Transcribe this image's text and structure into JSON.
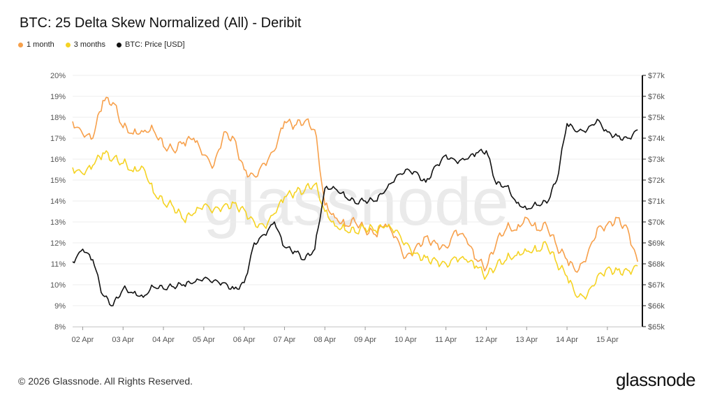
{
  "header": {
    "title": "BTC: 25 Delta Skew Normalized (All) - Deribit"
  },
  "legend": [
    {
      "label": "1 month",
      "color": "#F7A04B"
    },
    {
      "label": "3 months",
      "color": "#F5D324"
    },
    {
      "label": "BTC: Price [USD]",
      "color": "#111111"
    }
  ],
  "watermark": "glassnode",
  "footer": {
    "copyright": "© 2026 Glassnode. All Rights Reserved.",
    "brand": "glassnode"
  },
  "chart_data": {
    "type": "line",
    "title": "BTC: 25 Delta Skew Normalized (All) - Deribit",
    "x": [
      1.75,
      2.0,
      2.25,
      2.5,
      2.75,
      3.0,
      3.25,
      3.5,
      3.75,
      4.0,
      4.25,
      4.5,
      4.75,
      5.0,
      5.25,
      5.5,
      5.75,
      6.0,
      6.25,
      6.5,
      6.75,
      7.0,
      7.25,
      7.5,
      7.75,
      8.0,
      8.25,
      8.5,
      8.75,
      9.0,
      9.25,
      9.5,
      9.75,
      10.0,
      10.25,
      10.5,
      10.75,
      11.0,
      11.25,
      11.5,
      11.75,
      12.0,
      12.25,
      12.5,
      12.75,
      13.0,
      13.25,
      13.5,
      13.75,
      14.0,
      14.25,
      14.5,
      14.75,
      15.0,
      15.25,
      15.5,
      15.75
    ],
    "x_ticks": [
      2,
      3,
      4,
      5,
      6,
      7,
      8,
      9,
      10,
      11,
      12,
      13,
      14,
      15
    ],
    "x_tick_labels": [
      "02 Apr",
      "03 Apr",
      "04 Apr",
      "05 Apr",
      "06 Apr",
      "07 Apr",
      "08 Apr",
      "09 Apr",
      "10 Apr",
      "11 Apr",
      "12 Apr",
      "13 Apr",
      "14 Apr",
      "15 Apr"
    ],
    "xlim": [
      1.75,
      15.85
    ],
    "y_left": {
      "ticks": [
        8,
        9,
        10,
        11,
        12,
        13,
        14,
        15,
        16,
        17,
        18,
        19,
        20
      ],
      "tick_labels": [
        "8%",
        "9%",
        "10%",
        "11%",
        "12%",
        "13%",
        "14%",
        "15%",
        "16%",
        "17%",
        "18%",
        "19%",
        "20%"
      ],
      "ylim": [
        8,
        20
      ]
    },
    "y_right": {
      "ticks": [
        65000,
        66000,
        67000,
        68000,
        69000,
        70000,
        71000,
        72000,
        73000,
        74000,
        75000,
        76000,
        77000
      ],
      "tick_labels": [
        "$65k",
        "$66k",
        "$67k",
        "$68k",
        "$69k",
        "$70k",
        "$71k",
        "$72k",
        "$73k",
        "$74k",
        "$75k",
        "$76k",
        "$77k"
      ],
      "ylim": [
        65000,
        77000
      ]
    },
    "grid": "horizontal",
    "legend_position": "top-left",
    "series": [
      {
        "name": "1 month",
        "color": "#F7A04B",
        "axis": "left",
        "values": [
          17.8,
          17.2,
          17.0,
          18.8,
          18.7,
          17.5,
          17.2,
          17.3,
          17.4,
          16.6,
          16.4,
          16.8,
          17.0,
          16.2,
          15.7,
          17.3,
          17.0,
          15.5,
          15.2,
          15.8,
          16.4,
          17.8,
          17.6,
          17.8,
          17.4,
          13.8,
          13.2,
          12.8,
          13.0,
          12.6,
          12.4,
          12.9,
          12.3,
          11.3,
          11.8,
          12.3,
          12.0,
          11.8,
          12.6,
          12.2,
          11.2,
          10.8,
          12.0,
          12.7,
          12.6,
          13.2,
          12.6,
          12.8,
          11.8,
          11.2,
          10.6,
          11.4,
          12.7,
          12.9,
          13.2,
          12.7,
          11.1
        ]
      },
      {
        "name": "3 months",
        "color": "#F5D324",
        "axis": "left",
        "values": [
          15.6,
          15.3,
          15.7,
          16.3,
          16.0,
          15.8,
          15.4,
          15.6,
          14.4,
          13.9,
          13.7,
          13.1,
          13.4,
          13.8,
          13.6,
          13.8,
          13.9,
          13.6,
          13.0,
          12.8,
          13.4,
          14.2,
          14.4,
          14.5,
          14.8,
          13.5,
          12.8,
          12.6,
          12.5,
          12.7,
          12.6,
          12.8,
          12.6,
          12.0,
          11.5,
          11.3,
          11.2,
          11.0,
          11.3,
          11.2,
          10.9,
          10.4,
          10.9,
          11.2,
          11.4,
          11.6,
          11.6,
          11.9,
          11.0,
          10.4,
          9.4,
          9.5,
          10.4,
          10.8,
          10.7,
          10.7,
          10.9
        ]
      },
      {
        "name": "BTC: Price [USD]",
        "color": "#111111",
        "axis": "right",
        "values": [
          68100,
          68700,
          68200,
          66500,
          66000,
          66800,
          66600,
          66400,
          66900,
          66800,
          66900,
          67000,
          67100,
          67300,
          67200,
          67100,
          66800,
          67100,
          69000,
          69400,
          70000,
          68800,
          68600,
          68200,
          68700,
          71600,
          71600,
          71200,
          70900,
          71000,
          71000,
          71500,
          72100,
          72500,
          72400,
          71900,
          72700,
          73200,
          72900,
          73000,
          73300,
          73400,
          71800,
          71700,
          70900,
          70600,
          70800,
          70900,
          72000,
          74700,
          74300,
          74400,
          74900,
          74300,
          74100,
          74000,
          74400
        ]
      }
    ]
  }
}
